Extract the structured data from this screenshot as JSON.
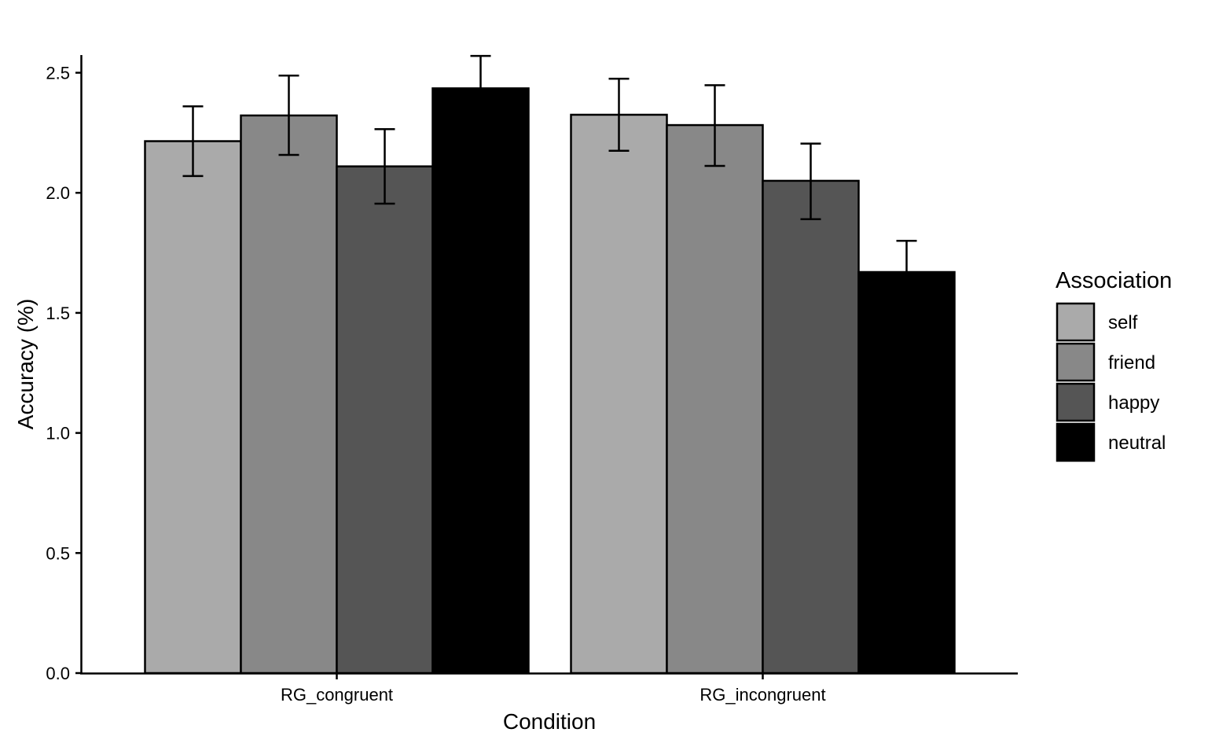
{
  "chart_data": {
    "type": "bar",
    "title": "",
    "xlabel": "Condition",
    "ylabel": "Accuracy (%)",
    "ylim": [
      0,
      2.58
    ],
    "yticks": [
      0.0,
      0.5,
      1.0,
      1.5,
      2.0,
      2.5
    ],
    "ytick_labels": [
      "0.0",
      "0.5",
      "1.0",
      "1.5",
      "2.0",
      "2.5"
    ],
    "categories": [
      "RG_congruent",
      "RG_incongruent"
    ],
    "grid": false,
    "legend": {
      "title": "Association",
      "placement": "right"
    },
    "series": [
      {
        "name": "self",
        "color": "#aaaaaa",
        "values": [
          2.215,
          2.325
        ],
        "error_low": [
          2.07,
          2.175
        ],
        "error_high": [
          2.36,
          2.475
        ]
      },
      {
        "name": "friend",
        "color": "#888888",
        "values": [
          2.322,
          2.282
        ],
        "error_low": [
          2.158,
          2.112
        ],
        "error_high": [
          2.488,
          2.448
        ]
      },
      {
        "name": "happy",
        "color": "#555555",
        "values": [
          2.11,
          2.05
        ],
        "error_low": [
          1.955,
          1.89
        ],
        "error_high": [
          2.265,
          2.205
        ]
      },
      {
        "name": "neutral",
        "color": "#000000",
        "values": [
          2.435,
          1.67
        ],
        "error_low": [
          2.295,
          1.54
        ],
        "error_high": [
          2.57,
          1.8
        ]
      }
    ]
  }
}
